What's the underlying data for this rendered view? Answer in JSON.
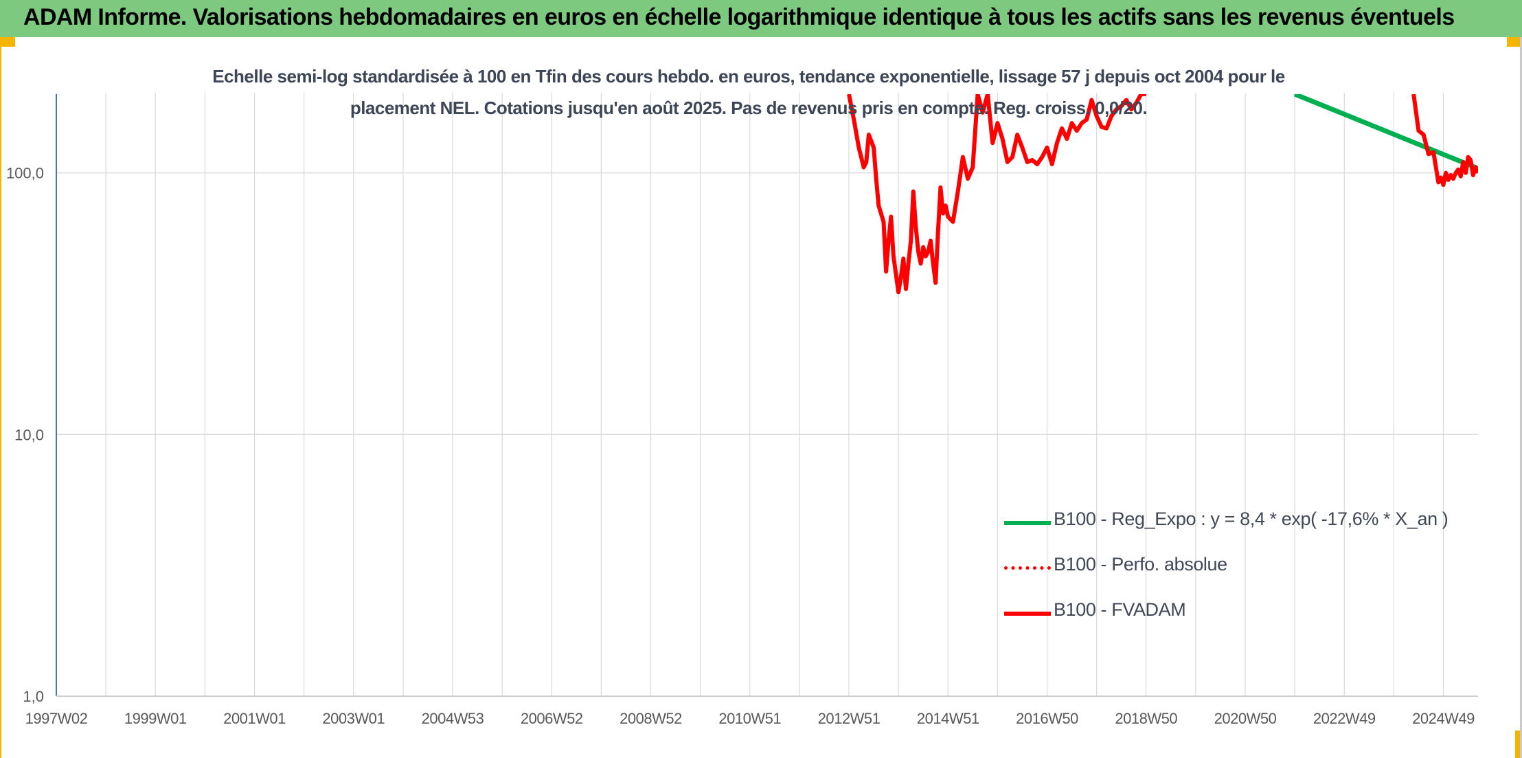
{
  "banner": {
    "title": "ADAM Informe. Valorisations hebdomadaires en euros en échelle logarithmique identique à tous les actifs sans les revenus éventuels",
    "color": "#7dc97f"
  },
  "chart_data": {
    "type": "line",
    "title_line1": "Echelle semi-log standardisée à 100 en Tfin des cours hebdo. en euros, tendance exponentielle, lissage 57 j depuis oct 2004 pour le",
    "title_line2": "placement NEL. Cotations jusqu'en août 2025. Pas de revenus pris en compte. Reg. croiss. 0,0/20.",
    "y_scale": "log",
    "ylim": [
      1,
      200
    ],
    "y_ticks": [
      {
        "value": 1,
        "label": "1,0"
      },
      {
        "value": 10,
        "label": "10,0"
      },
      {
        "value": 100,
        "label": "100,0"
      }
    ],
    "xlim": [
      1997.0,
      2025.7
    ],
    "x_ticks": [
      {
        "value": 1997.0,
        "label": "1997W02"
      },
      {
        "value": 1999.0,
        "label": "1999W01"
      },
      {
        "value": 2001.0,
        "label": "2001W01"
      },
      {
        "value": 2003.0,
        "label": "2003W01"
      },
      {
        "value": 2005.0,
        "label": "2004W53"
      },
      {
        "value": 2007.0,
        "label": "2006W52"
      },
      {
        "value": 2009.0,
        "label": "2008W52"
      },
      {
        "value": 2011.0,
        "label": "2010W51"
      },
      {
        "value": 2013.0,
        "label": "2012W51"
      },
      {
        "value": 2015.0,
        "label": "2014W51"
      },
      {
        "value": 2017.0,
        "label": "2016W50"
      },
      {
        "value": 2019.0,
        "label": "2018W50"
      },
      {
        "value": 2021.0,
        "label": "2020W50"
      },
      {
        "value": 2023.0,
        "label": "2022W49"
      },
      {
        "value": 2025.0,
        "label": "2024W49"
      }
    ],
    "grid": true,
    "legend_position": "bottom-right",
    "series": [
      {
        "name": "B100 - Reg_Expo : y = 8,4 * exp( -17,6% *  X_an )",
        "color": "#00b050",
        "style": "solid",
        "x": [
          2022.0,
          2025.7
        ],
        "y": [
          200,
          104
        ]
      },
      {
        "name": "B100 - Perfo. absolue",
        "color": "#ff0000",
        "style": "dotted",
        "x": [],
        "y": []
      },
      {
        "name": "B100 - FVADAM",
        "color": "#ff0000",
        "style": "solid",
        "segments": [
          {
            "x": [
              2013.0,
              2013.1,
              2013.2,
              2013.3,
              2013.35,
              2013.4,
              2013.5,
              2013.55,
              2013.6,
              2013.7,
              2013.75,
              2013.8,
              2013.85,
              2013.9,
              2014.0,
              2014.05,
              2014.1,
              2014.15,
              2014.2,
              2014.25,
              2014.3,
              2014.35,
              2014.4,
              2014.45,
              2014.5,
              2014.55,
              2014.6,
              2014.65,
              2014.7,
              2014.75,
              2014.8,
              2014.85,
              2014.9,
              2014.95,
              2015.0,
              2015.1,
              2015.2,
              2015.3,
              2015.4,
              2015.5,
              2015.6,
              2015.7,
              2015.8,
              2015.9,
              2016.0,
              2016.1,
              2016.2,
              2016.3,
              2016.4,
              2016.5,
              2016.6,
              2016.7,
              2016.8,
              2016.9,
              2017.0,
              2017.1,
              2017.2,
              2017.3,
              2017.4,
              2017.5,
              2017.6,
              2017.7,
              2017.8,
              2017.9,
              2018.0,
              2018.1,
              2018.2,
              2018.3,
              2018.4,
              2018.5,
              2018.6,
              2018.7,
              2018.8,
              2018.9,
              2019.0
            ],
            "y": [
              200,
              160,
              125,
              105,
              110,
              140,
              125,
              95,
              75,
              65,
              42,
              55,
              68,
              48,
              35,
              40,
              47,
              36,
              45,
              55,
              85,
              62,
              50,
              45,
              52,
              48,
              50,
              55,
              45,
              38,
              60,
              88,
              70,
              75,
              68,
              65,
              85,
              115,
              95,
              105,
              200,
              170,
              200,
              130,
              155,
              135,
              110,
              115,
              140,
              125,
              110,
              112,
              108,
              115,
              125,
              108,
              130,
              148,
              135,
              155,
              145,
              155,
              160,
              190,
              165,
              150,
              148,
              165,
              175,
              180,
              190,
              175,
              185,
              200,
              200
            ]
          },
          {
            "x": [
              2024.4,
              2024.5,
              2024.6,
              2024.7,
              2024.8,
              2024.9,
              2024.95,
              2025.0,
              2025.05,
              2025.1,
              2025.15,
              2025.2,
              2025.25,
              2025.3,
              2025.35,
              2025.4,
              2025.45,
              2025.5,
              2025.55,
              2025.6,
              2025.65,
              2025.7
            ],
            "y": [
              200,
              145,
              140,
              118,
              120,
              92,
              96,
              90,
              100,
              94,
              98,
              95,
              100,
              103,
              97,
              110,
              100,
              115,
              112,
              98,
              105,
              100
            ]
          }
        ]
      }
    ]
  }
}
